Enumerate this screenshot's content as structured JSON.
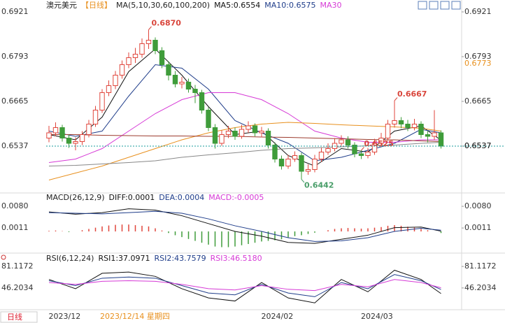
{
  "chart_data": [
    {
      "type": "candlestick",
      "title": "澳元美元",
      "subtitle": "【日线】",
      "ma_title": "MA(5,10,30,60,100,200)",
      "categories": [
        null,
        "2023/12",
        null,
        null,
        null,
        null,
        null,
        null,
        null,
        null,
        null,
        null,
        null,
        null,
        null,
        null,
        null,
        null,
        null,
        null,
        null,
        null,
        null,
        null,
        null,
        null,
        null,
        null,
        null,
        null,
        null,
        null,
        null,
        "2024/02",
        null,
        null,
        null,
        null,
        null,
        null,
        null,
        null,
        null,
        null,
        null,
        null,
        null,
        null,
        "2024/03",
        null,
        null,
        null,
        null,
        null,
        null,
        null,
        null,
        null,
        null,
        null
      ],
      "candles": [
        [
          0.656,
          0.6595,
          0.6548,
          0.6575
        ],
        [
          0.6575,
          0.6605,
          0.6565,
          0.659
        ],
        [
          0.659,
          0.6598,
          0.655,
          0.656
        ],
        [
          0.656,
          0.657,
          0.6532,
          0.6545
        ],
        [
          0.6545,
          0.6562,
          0.6525,
          0.655
        ],
        [
          0.655,
          0.658,
          0.654,
          0.657
        ],
        [
          0.657,
          0.6612,
          0.6562,
          0.66
        ],
        [
          0.66,
          0.6652,
          0.6592,
          0.664
        ],
        [
          0.664,
          0.67,
          0.6632,
          0.669
        ],
        [
          0.669,
          0.6725,
          0.668,
          0.671
        ],
        [
          0.671,
          0.6752,
          0.67,
          0.674
        ],
        [
          0.674,
          0.6782,
          0.673,
          0.677
        ],
        [
          0.677,
          0.6805,
          0.676,
          0.679
        ],
        [
          0.679,
          0.6818,
          0.6775,
          0.68
        ],
        [
          0.68,
          0.6845,
          0.679,
          0.683
        ],
        [
          0.683,
          0.687,
          0.6815,
          0.684
        ],
        [
          0.684,
          0.6848,
          0.68,
          0.681
        ],
        [
          0.681,
          0.682,
          0.676,
          0.677
        ],
        [
          0.677,
          0.678,
          0.6725,
          0.674
        ],
        [
          0.674,
          0.6752,
          0.6705,
          0.6715
        ],
        [
          0.6715,
          0.6735,
          0.6702,
          0.672
        ],
        [
          0.672,
          0.673,
          0.669,
          0.67
        ],
        [
          0.67,
          0.6712,
          0.666,
          0.669
        ],
        [
          0.669,
          0.6698,
          0.663,
          0.664
        ],
        [
          0.664,
          0.6648,
          0.658,
          0.659
        ],
        [
          0.659,
          0.66,
          0.653,
          0.6545
        ],
        [
          0.6545,
          0.6582,
          0.6538,
          0.657
        ],
        [
          0.657,
          0.6595,
          0.656,
          0.658
        ],
        [
          0.658,
          0.659,
          0.6555,
          0.6565
        ],
        [
          0.6565,
          0.6598,
          0.6558,
          0.6585
        ],
        [
          0.6585,
          0.6608,
          0.6575,
          0.6595
        ],
        [
          0.6595,
          0.6602,
          0.6565,
          0.6575
        ],
        [
          0.6575,
          0.6592,
          0.6562,
          0.658
        ],
        [
          0.658,
          0.6588,
          0.653,
          0.654
        ],
        [
          0.654,
          0.6548,
          0.649,
          0.65
        ],
        [
          0.65,
          0.651,
          0.647,
          0.648
        ],
        [
          0.648,
          0.6512,
          0.6472,
          0.65
        ],
        [
          0.65,
          0.6522,
          0.6492,
          0.651
        ],
        [
          0.651,
          0.6518,
          0.6442,
          0.6465
        ],
        [
          0.6465,
          0.6485,
          0.6455,
          0.647
        ],
        [
          0.647,
          0.6512,
          0.6462,
          0.65
        ],
        [
          0.65,
          0.6532,
          0.6492,
          0.652
        ],
        [
          0.652,
          0.6545,
          0.6512,
          0.653
        ],
        [
          0.653,
          0.656,
          0.6522,
          0.6545
        ],
        [
          0.6545,
          0.6568,
          0.6538,
          0.6555
        ],
        [
          0.6555,
          0.6565,
          0.653,
          0.654
        ],
        [
          0.654,
          0.6548,
          0.6505,
          0.6515
        ],
        [
          0.6515,
          0.6525,
          0.65,
          0.651
        ],
        [
          0.651,
          0.6532,
          0.6502,
          0.652
        ],
        [
          0.652,
          0.6558,
          0.6512,
          0.6545
        ],
        [
          0.6545,
          0.6575,
          0.6535,
          0.656
        ],
        [
          0.656,
          0.6612,
          0.6552,
          0.66
        ],
        [
          0.66,
          0.6667,
          0.659,
          0.661
        ],
        [
          0.661,
          0.662,
          0.6588,
          0.66
        ],
        [
          0.66,
          0.6612,
          0.658,
          0.659
        ],
        [
          0.659,
          0.6615,
          0.6582,
          0.66
        ],
        [
          0.66,
          0.6608,
          0.656,
          0.657
        ],
        [
          0.657,
          0.658,
          0.6548,
          0.6565
        ],
        [
          0.6565,
          0.664,
          0.6555,
          0.6575
        ],
        [
          0.6575,
          0.6582,
          0.653,
          0.6537
        ]
      ],
      "up_color": "#e0463c",
      "down_color": "#3f9c3a",
      "ylim": [
        0.6405,
        0.6955
      ],
      "yticks": [
        0.6921,
        0.6793,
        0.6665,
        0.6537
      ],
      "overlays": [
        {
          "name": "MA5:0.6554",
          "color": "#111111",
          "x": [
            0,
            4,
            8,
            12,
            16,
            20,
            24,
            28,
            32,
            36,
            40,
            44,
            48,
            52,
            56,
            59
          ],
          "values": [
            0.657,
            0.6555,
            0.662,
            0.675,
            0.6815,
            0.674,
            0.665,
            0.657,
            0.658,
            0.651,
            0.648,
            0.653,
            0.652,
            0.658,
            0.6595,
            0.6554
          ]
        },
        {
          "name": "MA10:0.6575",
          "color": "#1f3d8a",
          "x": [
            0,
            4,
            8,
            12,
            16,
            20,
            24,
            28,
            32,
            36,
            40,
            44,
            48,
            52,
            56,
            59
          ],
          "values": [
            0.658,
            0.6565,
            0.658,
            0.668,
            0.677,
            0.676,
            0.67,
            0.661,
            0.6575,
            0.6545,
            0.6495,
            0.6505,
            0.6525,
            0.6545,
            0.6585,
            0.6575
          ]
        },
        {
          "name": "MA30",
          "color": "#d63ad6",
          "x": [
            0,
            4,
            8,
            12,
            16,
            20,
            24,
            28,
            32,
            36,
            40,
            44,
            48,
            52,
            56,
            59
          ],
          "values": [
            0.649,
            0.65,
            0.653,
            0.658,
            0.663,
            0.667,
            0.669,
            0.669,
            0.667,
            0.663,
            0.658,
            0.656,
            0.6548,
            0.6548,
            0.6555,
            0.6555
          ]
        },
        {
          "color": "#e8901e",
          "x": [
            0,
            4,
            8,
            12,
            16,
            20,
            24,
            28,
            32,
            36,
            40,
            44,
            48,
            52,
            56,
            59
          ],
          "values": [
            0.644,
            0.646,
            0.648,
            0.6505,
            0.653,
            0.6555,
            0.6575,
            0.659,
            0.66,
            0.6605,
            0.6602,
            0.6598,
            0.6595,
            0.6592,
            0.6588,
            0.658
          ]
        },
        {
          "color": "#888888",
          "x": [
            0,
            4,
            8,
            12,
            16,
            20,
            24,
            28,
            32,
            36,
            40,
            44,
            48,
            52,
            56,
            59
          ],
          "values": [
            0.648,
            0.6482,
            0.6486,
            0.649,
            0.6495,
            0.6505,
            0.6512,
            0.6518,
            0.6525,
            0.653,
            0.6532,
            0.6535,
            0.6538,
            0.654,
            0.6545,
            0.6548
          ]
        },
        {
          "color": "#9c3b2e",
          "x": [
            0,
            4,
            8,
            12,
            16,
            20,
            24,
            28,
            32,
            36,
            40,
            44,
            48,
            52,
            56,
            59
          ],
          "values": [
            0.657,
            0.657,
            0.6568,
            0.6567,
            0.6566,
            0.6566,
            0.6565,
            0.6565,
            0.6563,
            0.6562,
            0.656,
            0.6558,
            0.6556,
            0.6555,
            0.6552,
            0.655
          ]
        }
      ],
      "annotations": [
        {
          "value": 0.687,
          "label": "0.6870"
        },
        {
          "value": 0.6525,
          "label": "0.6525"
        },
        {
          "value": 0.6442,
          "label": "0.6442"
        },
        {
          "value": 0.6667,
          "label": "0.6667"
        }
      ],
      "last_price": 0.6537,
      "last_price_color": "#1a9c9c",
      "marker_price": 0.6773,
      "marker_color": "#e8901e"
    },
    {
      "type": "macd",
      "title": "MACD(26,12,9)",
      "ylim": [
        -0.006,
        0.0118
      ],
      "yticks": [
        {
          "value": 0.008,
          "label": "0.0080"
        },
        0.0011
      ],
      "histogram": {
        "name": "MACD:-0.0005",
        "color": "#d63ad6",
        "up_color": "#e0463c",
        "down_color": "#3f9c3a",
        "values": [
          0.0002,
          0.0003,
          0.0001,
          -0.0002,
          0,
          0.0004,
          0.0008,
          0.0012,
          0.0016,
          0.0019,
          0.0021,
          0.0022,
          0.0022,
          0.002,
          0.0018,
          0.0016,
          0.001,
          0.0003,
          -0.0005,
          -0.0012,
          -0.0018,
          -0.0024,
          -0.003,
          -0.0036,
          -0.0042,
          -0.0048,
          -0.005,
          -0.005,
          -0.0048,
          -0.0044,
          -0.004,
          -0.0036,
          -0.0032,
          -0.003,
          -0.0028,
          -0.0025,
          -0.002,
          -0.0015,
          -0.0012,
          -0.0008,
          -0.0004,
          0,
          0.0004,
          0.0008,
          0.001,
          0.0011,
          0.001,
          0.0009,
          0.001,
          0.0012,
          0.0014,
          0.0018,
          0.002,
          0.0018,
          0.0015,
          0.0012,
          0.0008,
          0.0004,
          0,
          -0.0005
        ]
      },
      "series": [
        {
          "name": "DIFF:0.0001",
          "color": "#111111",
          "x": [
            0,
            4,
            8,
            12,
            16,
            20,
            24,
            28,
            32,
            36,
            40,
            44,
            48,
            52,
            56,
            59
          ],
          "values": [
            0.0062,
            0.0055,
            0.006,
            0.0072,
            0.0068,
            0.005,
            0.0025,
            0,
            -0.0015,
            -0.0035,
            -0.0038,
            -0.0025,
            -0.0012,
            0.0012,
            0.0014,
            0.0001
          ]
        },
        {
          "name": "DEA:0.0004",
          "color": "#1f3d8a",
          "x": [
            0,
            4,
            8,
            12,
            16,
            20,
            24,
            28,
            32,
            36,
            40,
            44,
            48,
            52,
            56,
            59
          ],
          "values": [
            0.006,
            0.0058,
            0.0056,
            0.006,
            0.0064,
            0.0058,
            0.004,
            0.0018,
            0,
            -0.002,
            -0.0032,
            -0.003,
            -0.002,
            0,
            0.001,
            0.0004
          ]
        }
      ]
    },
    {
      "type": "rsi",
      "title": "RSI(6,12,24)",
      "ylim": [
        12,
        96
      ],
      "yticks": [
        81.1172,
        46.2034
      ],
      "series": [
        {
          "name": "RSI1:37.0971",
          "color": "#111111",
          "x": [
            0,
            4,
            8,
            12,
            16,
            20,
            24,
            28,
            32,
            36,
            40,
            44,
            48,
            52,
            56,
            59
          ],
          "values": [
            60,
            45,
            70,
            72,
            65,
            45,
            30,
            25,
            55,
            30,
            22,
            60,
            40,
            75,
            60,
            37.0971
          ]
        },
        {
          "name": "RSI2:43.7579",
          "color": "#1f3d8a",
          "x": [
            0,
            4,
            8,
            12,
            16,
            20,
            24,
            28,
            32,
            36,
            40,
            44,
            48,
            52,
            56,
            59
          ],
          "values": [
            58,
            50,
            62,
            64,
            62,
            50,
            38,
            35,
            52,
            38,
            32,
            55,
            45,
            68,
            58,
            43.7579
          ]
        },
        {
          "name": "RSI3:46.5180",
          "color": "#d63ad6",
          "x": [
            0,
            4,
            8,
            12,
            16,
            20,
            24,
            28,
            32,
            36,
            40,
            44,
            48,
            52,
            56,
            59
          ],
          "values": [
            55,
            52,
            57,
            58,
            57,
            52,
            45,
            43,
            50,
            44,
            42,
            52,
            48,
            60,
            55,
            46.518
          ]
        }
      ]
    }
  ],
  "footer": {
    "period": "日线",
    "cursor_date": "2023/12/14 星期四"
  }
}
